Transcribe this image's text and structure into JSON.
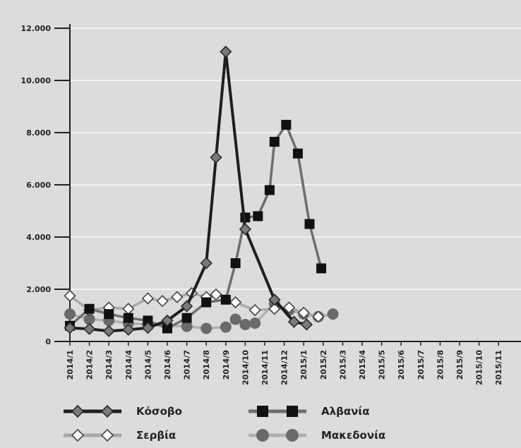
{
  "chart_data": {
    "type": "line",
    "title": "",
    "xlabel": "",
    "ylabel": "",
    "ylim": [
      0,
      12000
    ],
    "y_ticks": [
      "0",
      "2.000",
      "4.000",
      "6.000",
      "8.000",
      "10.000",
      "12.000"
    ],
    "grid": "horizontal",
    "legend_position": "bottom",
    "categories": [
      "2014/1",
      "2014/2",
      "2014/3",
      "2014/4",
      "2014/5",
      "2014/6",
      "2014/7",
      "2014/8",
      "2014/9",
      "2014/10",
      "2014/11",
      "2014/12",
      "2015/1",
      "2015/2",
      "2015/3",
      "2015/4",
      "2015/5",
      "2015/6",
      "2015/7",
      "2015/8",
      "2015/9",
      "2015/10",
      "2015/11"
    ],
    "series": [
      {
        "name": "Κόσοβο",
        "color": "#1e1e1e",
        "marker": "diamond",
        "markerFill": "#7a7a7a",
        "points": [
          [
            0,
            520
          ],
          [
            2,
            480
          ],
          [
            4,
            400
          ],
          [
            6,
            450
          ],
          [
            8,
            520
          ],
          [
            10,
            800
          ],
          [
            12,
            1350
          ],
          [
            14,
            3000
          ],
          [
            15,
            7050
          ],
          [
            16,
            11100
          ],
          [
            18,
            4300
          ],
          [
            21,
            1600
          ],
          [
            23,
            750
          ],
          [
            24.3,
            650
          ]
        ]
      },
      {
        "name": "Αλβανία",
        "color": "#6e6e6e",
        "marker": "square",
        "markerFill": "#111111",
        "points": [
          [
            0,
            600
          ],
          [
            2,
            1250
          ],
          [
            4,
            1050
          ],
          [
            6,
            900
          ],
          [
            8,
            800
          ],
          [
            10,
            500
          ],
          [
            12,
            900
          ],
          [
            14,
            1500
          ],
          [
            16,
            1600
          ],
          [
            17,
            3000
          ],
          [
            18,
            4750
          ],
          [
            19.3,
            4800
          ],
          [
            20.5,
            5800
          ],
          [
            21,
            7650
          ],
          [
            22.2,
            8300
          ],
          [
            23.4,
            7200
          ],
          [
            24.6,
            4500
          ],
          [
            25.8,
            2800
          ]
        ]
      },
      {
        "name": "Σερβία",
        "color": "#a8a8a8",
        "marker": "diamond",
        "markerFill": "#ffffff",
        "points": [
          [
            0,
            1750
          ],
          [
            2,
            1200
          ],
          [
            4,
            1300
          ],
          [
            6,
            1250
          ],
          [
            8,
            1650
          ],
          [
            9.5,
            1550
          ],
          [
            11,
            1700
          ],
          [
            12.5,
            1850
          ],
          [
            14,
            1700
          ],
          [
            15,
            1800
          ],
          [
            17,
            1500
          ],
          [
            19,
            1200
          ],
          [
            21,
            1250
          ],
          [
            22.5,
            1300
          ],
          [
            24,
            1100
          ],
          [
            25.5,
            950
          ]
        ]
      },
      {
        "name": "Μακεδονία",
        "color": "#b0b0b0",
        "marker": "circle",
        "markerFill": "#6a6a6a",
        "points": [
          [
            0,
            1050
          ],
          [
            2,
            850
          ],
          [
            4,
            800
          ],
          [
            6,
            700
          ],
          [
            8,
            650
          ],
          [
            10,
            600
          ],
          [
            12,
            580
          ],
          [
            14,
            500
          ],
          [
            16,
            550
          ],
          [
            17,
            850
          ],
          [
            18,
            650
          ],
          [
            19,
            700
          ],
          [
            21,
            1450
          ],
          [
            22.5,
            1200
          ],
          [
            24,
            1050
          ],
          [
            25.5,
            950
          ],
          [
            27,
            1050
          ]
        ]
      }
    ]
  }
}
